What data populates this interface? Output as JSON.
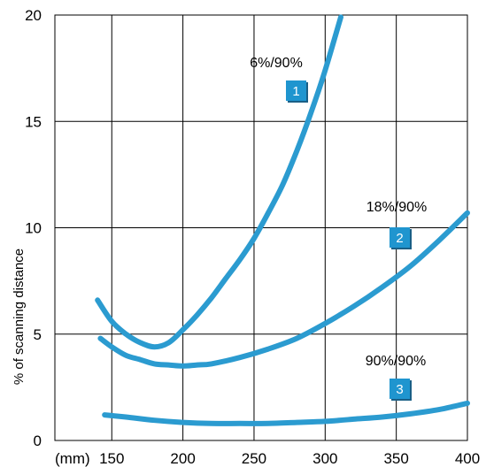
{
  "chart_data": {
    "type": "line",
    "title": "",
    "xlabel": "",
    "x_unit_label": "(mm)",
    "ylabel": "% of scanning distance",
    "xlim": [
      110,
      400
    ],
    "ylim": [
      0,
      20
    ],
    "x_ticks": [
      "150",
      "200",
      "250",
      "300",
      "350",
      "400"
    ],
    "x_tick_values": [
      150,
      200,
      250,
      300,
      350,
      400
    ],
    "y_ticks": [
      "0",
      "5",
      "10",
      "15",
      "20"
    ],
    "y_tick_values": [
      0,
      5,
      10,
      15,
      20
    ],
    "grid": true,
    "line_color": "#2b9bd0",
    "badge_color": "#1f95cf",
    "series": [
      {
        "name": "6%/90%",
        "badge": "1",
        "x": [
          140,
          150,
          160,
          170,
          180,
          190,
          200,
          210,
          220,
          230,
          240,
          250,
          260,
          270,
          280,
          290,
          300,
          311
        ],
        "y": [
          6.6,
          5.6,
          5.0,
          4.6,
          4.4,
          4.6,
          5.2,
          5.9,
          6.7,
          7.6,
          8.5,
          9.5,
          10.7,
          12.0,
          13.6,
          15.4,
          17.4,
          19.9
        ]
      },
      {
        "name": "18%/90%",
        "badge": "2",
        "x": [
          142,
          150,
          160,
          170,
          180,
          190,
          200,
          210,
          220,
          240,
          260,
          280,
          300,
          320,
          340,
          360,
          380,
          400
        ],
        "y": [
          4.8,
          4.4,
          4.0,
          3.8,
          3.6,
          3.55,
          3.5,
          3.55,
          3.6,
          3.9,
          4.3,
          4.8,
          5.5,
          6.3,
          7.2,
          8.2,
          9.4,
          10.7
        ]
      },
      {
        "name": "90%/90%",
        "badge": "3",
        "x": [
          145,
          160,
          180,
          200,
          220,
          240,
          260,
          280,
          300,
          320,
          340,
          360,
          380,
          400
        ],
        "y": [
          1.2,
          1.1,
          0.95,
          0.85,
          0.8,
          0.8,
          0.8,
          0.85,
          0.9,
          1.0,
          1.1,
          1.25,
          1.45,
          1.75
        ]
      }
    ]
  }
}
